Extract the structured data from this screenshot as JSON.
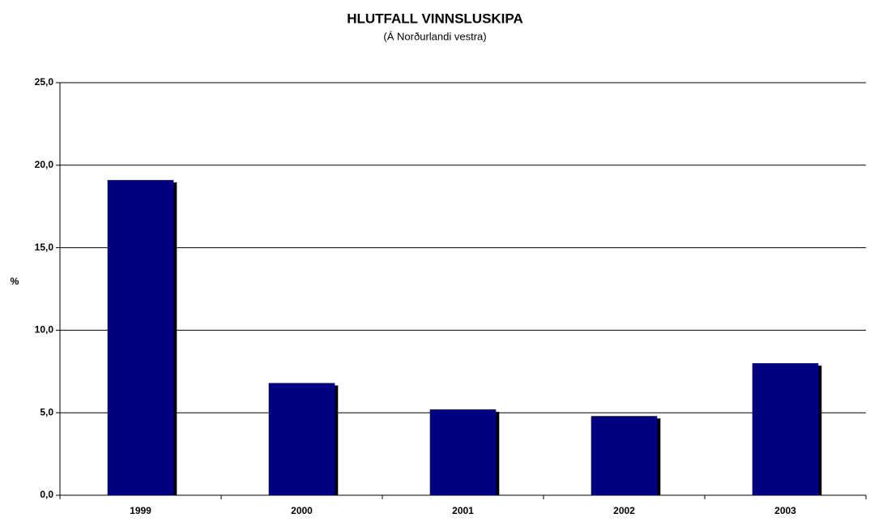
{
  "chart_data": {
    "type": "bar",
    "title": "HLUTFALL VINNSLUSKIPA",
    "subtitle": "(Á Norðurlandi vestra)",
    "ylabel": "%",
    "categories": [
      "1999",
      "2000",
      "2001",
      "2002",
      "2003"
    ],
    "values": [
      19.1,
      6.8,
      5.2,
      4.8,
      8.0
    ],
    "color": "#000080",
    "ylim": [
      0,
      25
    ],
    "yticks": [
      {
        "value": 0,
        "label": "0,0"
      },
      {
        "value": 5,
        "label": "5,0"
      },
      {
        "value": 10,
        "label": "10,0"
      },
      {
        "value": 15,
        "label": "15,0"
      },
      {
        "value": 20,
        "label": "20,0"
      },
      {
        "value": 25,
        "label": "25,0"
      }
    ],
    "grid": true
  }
}
